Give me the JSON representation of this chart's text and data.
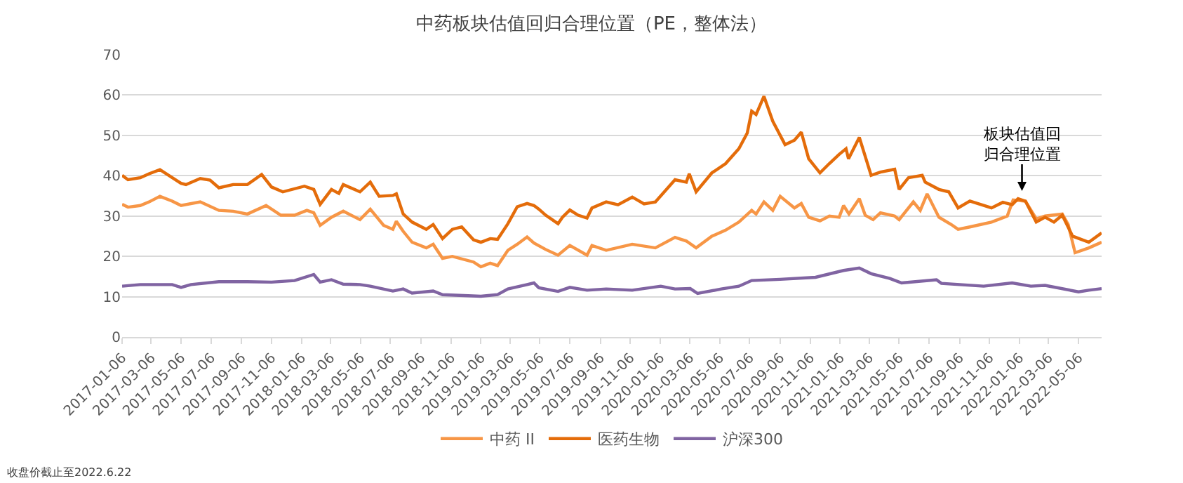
{
  "chart_data": {
    "type": "line",
    "title": "中药板块估值回归合理位置（PE，整体法）",
    "xlim": [
      "2017-01-06",
      "2022-06-22"
    ],
    "xticks": [
      "2017-01-06",
      "2017-03-06",
      "2017-05-06",
      "2017-07-06",
      "2017-09-06",
      "2017-11-06",
      "2018-01-06",
      "2018-03-06",
      "2018-05-06",
      "2018-07-06",
      "2018-09-06",
      "2018-11-06",
      "2019-01-06",
      "2019-03-06",
      "2019-05-06",
      "2019-07-06",
      "2019-09-06",
      "2019-11-06",
      "2020-01-06",
      "2020-03-06",
      "2020-05-06",
      "2020-07-06",
      "2020-09-06",
      "2020-11-06",
      "2021-01-06",
      "2021-03-06",
      "2021-05-06",
      "2021-07-06",
      "2021-09-06",
      "2021-11-06",
      "2022-01-06",
      "2022-03-06",
      "2022-05-06"
    ],
    "ylim": [
      0,
      70
    ],
    "yticks": [
      0,
      10,
      20,
      30,
      40,
      50,
      60,
      70
    ],
    "grid": "y",
    "legend": "bottom",
    "marker": "none",
    "line_style": "solid",
    "series": [
      {
        "name": "中药 II",
        "color": "#f79646",
        "x": [
          "2017-01-06",
          "2017-01-18",
          "2017-02-12",
          "2017-03-02",
          "2017-03-24",
          "2017-04-18",
          "2017-05-06",
          "2017-06-14",
          "2017-07-22",
          "2017-08-20",
          "2017-09-18",
          "2017-10-26",
          "2017-11-25",
          "2017-12-23",
          "2018-01-17",
          "2018-01-31",
          "2018-02-13",
          "2018-03-08",
          "2018-04-01",
          "2018-05-05",
          "2018-05-26",
          "2018-06-22",
          "2018-07-11",
          "2018-07-18",
          "2018-08-01",
          "2018-08-19",
          "2018-09-17",
          "2018-10-01",
          "2018-10-20",
          "2018-11-09",
          "2018-12-22",
          "2019-01-06",
          "2019-01-25",
          "2019-02-09",
          "2019-03-02",
          "2019-03-21",
          "2019-04-10",
          "2019-04-24",
          "2019-05-18",
          "2019-06-12",
          "2019-07-06",
          "2019-08-10",
          "2019-08-20",
          "2019-09-18",
          "2019-11-10",
          "2019-12-27",
          "2020-02-05",
          "2020-02-28",
          "2020-03-19",
          "2020-04-20",
          "2020-05-18",
          "2020-06-14",
          "2020-07-10",
          "2020-07-19",
          "2020-08-04",
          "2020-08-22",
          "2020-09-06",
          "2020-10-05",
          "2020-10-19",
          "2020-11-03",
          "2020-11-26",
          "2020-12-15",
          "2021-01-04",
          "2021-01-13",
          "2021-01-24",
          "2021-02-14",
          "2021-02-26",
          "2021-03-14",
          "2021-03-29",
          "2021-04-27",
          "2021-05-06",
          "2021-06-04",
          "2021-06-18",
          "2021-07-02",
          "2021-07-26",
          "2021-08-20",
          "2021-09-03",
          "2021-09-27",
          "2021-11-10",
          "2021-12-12",
          "2021-12-24",
          "2022-01-18",
          "2022-02-09",
          "2022-02-27",
          "2022-04-03",
          "2022-04-15",
          "2022-04-29",
          "2022-05-27",
          "2022-06-22"
        ],
        "values": [
          32.9,
          32.2,
          32.6,
          33.5,
          34.9,
          33.7,
          32.6,
          33.5,
          31.4,
          31.2,
          30.5,
          32.6,
          30.2,
          30.2,
          31.4,
          30.8,
          27.7,
          29.7,
          31.2,
          29.1,
          31.7,
          27.7,
          26.7,
          28.7,
          26.2,
          23.5,
          22.1,
          23,
          19.5,
          20,
          18.6,
          17.4,
          18.3,
          17.7,
          21.5,
          23,
          24.8,
          23.3,
          21.7,
          20.3,
          22.7,
          20.3,
          22.7,
          21.5,
          23,
          22.1,
          24.7,
          23.8,
          22.1,
          25,
          26.5,
          28.5,
          31.4,
          30.5,
          33.5,
          31.4,
          34.9,
          32,
          33.1,
          29.7,
          28.8,
          30,
          29.7,
          32.6,
          30.5,
          34.3,
          30.2,
          29.1,
          30.8,
          30,
          29.1,
          33.5,
          31.4,
          35.5,
          29.7,
          27.9,
          26.7,
          27.3,
          28.5,
          30,
          34,
          33.7,
          29.3,
          30,
          30.5,
          27.9,
          20.9,
          22.1,
          23.5
        ]
      },
      {
        "name": "医药生物",
        "color": "#e46c0a",
        "x": [
          "2017-01-06",
          "2017-01-18",
          "2017-02-12",
          "2017-03-02",
          "2017-03-24",
          "2017-05-06",
          "2017-05-16",
          "2017-06-14",
          "2017-07-04",
          "2017-07-22",
          "2017-08-20",
          "2017-09-18",
          "2017-10-17",
          "2017-11-06",
          "2017-11-29",
          "2018-01-12",
          "2018-01-31",
          "2018-02-13",
          "2018-03-08",
          "2018-03-23",
          "2018-04-01",
          "2018-05-05",
          "2018-05-26",
          "2018-06-13",
          "2018-07-11",
          "2018-07-18",
          "2018-08-01",
          "2018-08-19",
          "2018-09-17",
          "2018-10-01",
          "2018-10-20",
          "2018-11-09",
          "2018-11-28",
          "2018-12-22",
          "2019-01-06",
          "2019-01-25",
          "2019-02-09",
          "2019-03-02",
          "2019-03-21",
          "2019-04-10",
          "2019-04-24",
          "2019-05-04",
          "2019-05-18",
          "2019-06-12",
          "2019-06-21",
          "2019-07-06",
          "2019-07-23",
          "2019-08-10",
          "2019-08-20",
          "2019-09-18",
          "2019-10-12",
          "2019-11-10",
          "2019-12-04",
          "2019-12-27",
          "2020-02-05",
          "2020-02-28",
          "2020-03-05",
          "2020-03-19",
          "2020-04-20",
          "2020-05-18",
          "2020-06-14",
          "2020-07-01",
          "2020-07-10",
          "2020-07-19",
          "2020-08-04",
          "2020-08-22",
          "2020-09-16",
          "2020-10-05",
          "2020-10-19",
          "2020-11-03",
          "2020-11-26",
          "2020-12-15",
          "2021-01-04",
          "2021-01-18",
          "2021-01-23",
          "2021-02-14",
          "2021-03-10",
          "2021-03-29",
          "2021-04-27",
          "2021-05-06",
          "2021-05-25",
          "2021-06-22",
          "2021-06-28",
          "2021-07-26",
          "2021-08-15",
          "2021-09-03",
          "2021-09-27",
          "2021-11-10",
          "2021-12-03",
          "2021-12-22",
          "2022-01-03",
          "2022-01-18",
          "2022-02-09",
          "2022-02-27",
          "2022-03-17",
          "2022-04-03",
          "2022-04-24",
          "2022-05-27",
          "2022-06-22"
        ],
        "values": [
          40.1,
          39,
          39.5,
          40.5,
          41.5,
          38.1,
          37.8,
          39.3,
          38.9,
          37,
          37.8,
          37.8,
          40.3,
          37.2,
          36,
          37.4,
          36.6,
          32.9,
          36.6,
          35.6,
          37.8,
          36,
          38.4,
          34.9,
          35.1,
          35.5,
          30.5,
          28.5,
          26.7,
          27.9,
          24.4,
          26.7,
          27.3,
          24.1,
          23.5,
          24.4,
          24.2,
          28.1,
          32.3,
          33.1,
          32.6,
          31.7,
          30.2,
          28.1,
          29.7,
          31.5,
          30.2,
          29.5,
          32,
          33.5,
          32.8,
          34.7,
          33,
          33.5,
          39,
          38.4,
          40.5,
          36,
          40.7,
          43,
          46.7,
          50.6,
          56,
          55.2,
          59.7,
          53.5,
          47.7,
          48.8,
          50.8,
          44.2,
          40.7,
          43,
          45.3,
          46.7,
          44.2,
          49.5,
          40.1,
          40.9,
          41.6,
          36.6,
          39.5,
          40.1,
          38.4,
          36.6,
          36,
          32,
          33.7,
          32,
          33.4,
          32.8,
          34.3,
          33.7,
          28.5,
          29.7,
          28.5,
          30.2,
          25,
          23.5,
          25.8
        ]
      },
      {
        "name": "沪深300",
        "color": "#8064a2",
        "x": [
          "2017-01-06",
          "2017-02-12",
          "2017-04-18",
          "2017-05-06",
          "2017-05-26",
          "2017-07-22",
          "2017-09-18",
          "2017-11-06",
          "2017-12-23",
          "2018-01-31",
          "2018-02-13",
          "2018-03-08",
          "2018-04-01",
          "2018-05-05",
          "2018-05-26",
          "2018-07-11",
          "2018-08-01",
          "2018-08-19",
          "2018-10-01",
          "2018-10-20",
          "2019-01-06",
          "2019-02-09",
          "2019-03-02",
          "2019-04-10",
          "2019-04-24",
          "2019-05-04",
          "2019-06-12",
          "2019-07-06",
          "2019-08-10",
          "2019-09-18",
          "2019-11-10",
          "2020-01-07",
          "2020-02-05",
          "2020-03-07",
          "2020-03-22",
          "2020-05-09",
          "2020-06-14",
          "2020-07-10",
          "2020-09-06",
          "2020-11-17",
          "2021-01-13",
          "2021-02-14",
          "2021-03-10",
          "2021-04-17",
          "2021-05-11",
          "2021-07-21",
          "2021-07-31",
          "2021-10-25",
          "2021-12-22",
          "2022-01-29",
          "2022-02-27",
          "2022-05-06",
          "2022-05-27",
          "2022-06-22"
        ],
        "values": [
          12.6,
          13,
          13,
          12.3,
          13,
          13.7,
          13.7,
          13.6,
          14,
          15.5,
          13.6,
          14.2,
          13.1,
          13,
          12.6,
          11.4,
          11.9,
          10.9,
          11.4,
          10.5,
          10.1,
          10.5,
          11.9,
          13,
          13.4,
          12.2,
          11.3,
          12.3,
          11.6,
          11.9,
          11.6,
          12.6,
          11.9,
          12,
          10.8,
          11.9,
          12.6,
          14,
          14.3,
          14.8,
          16.5,
          17.1,
          15.7,
          14.5,
          13.4,
          14.2,
          13.3,
          12.6,
          13.4,
          12.6,
          12.8,
          11.2,
          11.6,
          12
        ]
      }
    ],
    "annotations": [
      {
        "text": "板块估值回归合理位置",
        "x": "2022-01-11",
        "y": 36.2
      },
      "收盘价截止至2022.6.22"
    ]
  }
}
